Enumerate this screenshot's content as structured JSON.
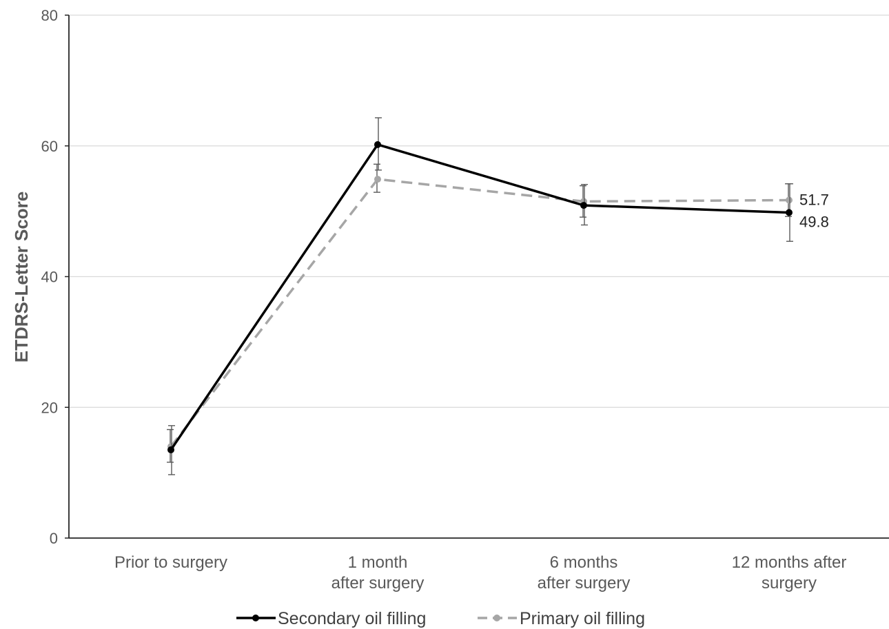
{
  "chart_data": {
    "type": "line",
    "title": "",
    "ylabel": "ETDRS-Letter Score",
    "xlabel": "",
    "ylim": [
      0,
      80
    ],
    "yticks": [
      0,
      20,
      40,
      60,
      80
    ],
    "grid": true,
    "legend_position": "bottom",
    "categories": [
      [
        "Prior to surgery"
      ],
      [
        "1 month",
        "after surgery"
      ],
      [
        "6 months",
        "after surgery"
      ],
      [
        "12 months after",
        "surgery"
      ]
    ],
    "series": [
      {
        "name": "Secondary oil filling",
        "color": "#000000",
        "dash": "solid",
        "values": [
          13.5,
          60.2,
          50.9,
          49.8
        ],
        "error_low": [
          9.7,
          56.3,
          47.9,
          45.4
        ],
        "error_high": [
          17.2,
          64.3,
          54.1,
          54.2
        ],
        "end_label": "49.8"
      },
      {
        "name": "Primary oil filling",
        "color": "#a6a6a6",
        "dash": "dashed",
        "values": [
          14.0,
          54.9,
          51.5,
          51.7
        ],
        "error_low": [
          11.6,
          52.9,
          49.1,
          49.2
        ],
        "error_high": [
          16.6,
          57.2,
          53.9,
          54.2
        ],
        "end_label": "51.7"
      }
    ]
  }
}
